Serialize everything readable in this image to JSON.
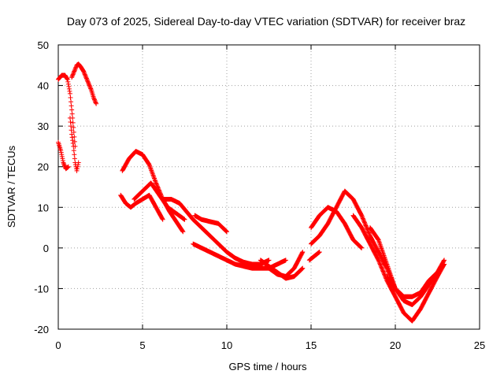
{
  "chart_data": {
    "type": "scatter",
    "title": "Day 073 of 2025, Sidereal Day-to-day VTEC variation (SDTVAR) for receiver braz",
    "xlabel": "GPS time / hours",
    "ylabel": "SDTVAR / TECUs",
    "xlim": [
      0,
      25
    ],
    "ylim": [
      -20,
      50
    ],
    "xticks": [
      0,
      5,
      10,
      15,
      20,
      25
    ],
    "yticks": [
      -20,
      -10,
      0,
      10,
      20,
      30,
      40,
      50
    ],
    "grid": true,
    "marker": "+",
    "color": "#ff0000",
    "series": [
      {
        "name": "arc1",
        "x": [
          0.0,
          0.2,
          0.4,
          0.55,
          0.7,
          0.85,
          1.0
        ],
        "y": [
          41.5,
          42.5,
          42.5,
          41.5,
          38,
          32,
          25
        ]
      },
      {
        "name": "arc2",
        "x": [
          0.0,
          0.15,
          0.3,
          0.45,
          0.6
        ],
        "y": [
          26,
          24,
          21,
          19.5,
          20
        ]
      },
      {
        "name": "arc3",
        "x": [
          0.7,
          0.8,
          0.9,
          1.0,
          1.1,
          1.2
        ],
        "y": [
          32,
          28,
          25,
          21,
          19,
          21
        ]
      },
      {
        "name": "arc4",
        "x": [
          0.8,
          0.95,
          1.1,
          1.2,
          1.35,
          1.5,
          1.65,
          1.8,
          1.95,
          2.1,
          2.25
        ],
        "y": [
          42,
          43.5,
          45,
          45.3,
          44.5,
          43.5,
          42,
          40.5,
          39,
          37,
          35.5
        ]
      },
      {
        "name": "arc5",
        "x": [
          3.8,
          4.2,
          4.6,
          5.0,
          5.4,
          5.8,
          6.2,
          6.6,
          7.0,
          7.4
        ],
        "y": [
          19,
          22,
          23.8,
          23,
          20.5,
          16,
          12,
          9,
          6.5,
          4
        ]
      },
      {
        "name": "arc6",
        "x": [
          4.5,
          5.0,
          5.5,
          6.0,
          6.5,
          7.0,
          7.5
        ],
        "y": [
          12,
          14,
          16,
          13,
          10,
          8.5,
          7
        ]
      },
      {
        "name": "arc7",
        "x": [
          3.7,
          4.0,
          4.3,
          4.6,
          5.0,
          5.4,
          5.8,
          6.2
        ],
        "y": [
          13,
          11,
          10,
          11,
          12,
          13,
          10,
          7
        ]
      },
      {
        "name": "arc8",
        "x": [
          6.2,
          6.7,
          7.2,
          7.6,
          8.0,
          8.5
        ],
        "y": [
          12,
          12,
          11,
          9,
          7,
          5
        ]
      },
      {
        "name": "arc9",
        "x": [
          8.1,
          8.5,
          9.0,
          9.5,
          10.0
        ],
        "y": [
          8,
          7,
          6.5,
          6,
          4
        ]
      },
      {
        "name": "arc10",
        "x": [
          8.0,
          8.5,
          9.0,
          9.5,
          10.0,
          10.5,
          11.0,
          11.5,
          12.0,
          12.5,
          13.0,
          13.5
        ],
        "y": [
          1,
          0,
          -1,
          -2,
          -3,
          -4,
          -4.5,
          -5,
          -5,
          -5,
          -4,
          -3
        ]
      },
      {
        "name": "arc11",
        "x": [
          8.5,
          9.0,
          9.5,
          10.0,
          10.5,
          11.0,
          11.5,
          12.0,
          12.5
        ],
        "y": [
          5,
          3,
          1,
          -1,
          -2.5,
          -3.5,
          -4,
          -4,
          -3
        ]
      },
      {
        "name": "arc12",
        "x": [
          12.0,
          12.5,
          13.0,
          13.5,
          14.0,
          14.5
        ],
        "y": [
          -3,
          -4.5,
          -6,
          -7.5,
          -7,
          -5
        ]
      },
      {
        "name": "arc13",
        "x": [
          12.5,
          13.0,
          13.5,
          14.0,
          14.5
        ],
        "y": [
          -5,
          -6.5,
          -7,
          -5,
          -1
        ]
      },
      {
        "name": "arc14",
        "x": [
          15.0,
          15.5,
          16.0,
          16.5,
          17.0,
          17.5,
          18.0
        ],
        "y": [
          5,
          8,
          10,
          9,
          6,
          2,
          0
        ]
      },
      {
        "name": "arc15",
        "x": [
          15.0,
          15.5,
          16.0,
          16.5,
          17.0,
          17.5,
          18.0,
          18.5,
          19.0,
          19.5,
          20.0
        ],
        "y": [
          1,
          3,
          6,
          10,
          14,
          12,
          8,
          3,
          -1,
          -5,
          -10
        ]
      },
      {
        "name": "arc16",
        "x": [
          17.5,
          18.0,
          18.5,
          19.0,
          19.5,
          20.0,
          20.5,
          21.0,
          21.5,
          22.0,
          22.5,
          22.9
        ],
        "y": [
          8,
          5,
          1,
          -3,
          -8,
          -12,
          -16,
          -18,
          -15,
          -11,
          -7,
          -4
        ]
      },
      {
        "name": "arc17",
        "x": [
          18.5,
          19.0,
          19.5,
          20.0,
          20.5,
          21.0,
          21.5,
          22.0,
          22.5,
          22.9
        ],
        "y": [
          5,
          2,
          -4,
          -10,
          -13,
          -14,
          -12,
          -9,
          -6,
          -3
        ]
      },
      {
        "name": "arc18",
        "x": [
          19.5,
          20.0,
          20.5,
          21.0,
          21.5,
          22.0,
          22.5,
          22.9
        ],
        "y": [
          -7,
          -10,
          -12,
          -12,
          -11,
          -8,
          -6,
          -4
        ]
      },
      {
        "name": "arc19",
        "x": [
          14.9,
          15.2,
          15.5
        ],
        "y": [
          -3,
          -2,
          -1
        ]
      }
    ]
  }
}
